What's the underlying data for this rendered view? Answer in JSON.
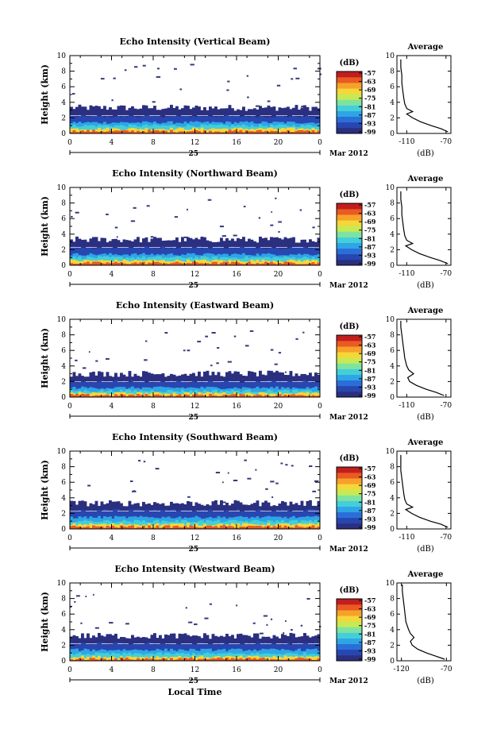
{
  "figure": {
    "common": {
      "ylabel": "Height (km)",
      "y_ticks": [
        "0",
        "2",
        "4",
        "6",
        "8",
        "10"
      ],
      "x_ticks": [
        "0",
        "4",
        "8",
        "12",
        "16",
        "20",
        "0"
      ],
      "day_label": "25",
      "month_label": "Mar 2012",
      "colorbar_unit": "(dB)",
      "colorbar_ticks": [
        "-57",
        "-63",
        "-69",
        "-75",
        "-81",
        "-87",
        "-93",
        "-99"
      ],
      "average_title": "Average",
      "average_unit": "(dB)",
      "bottom_xlabel": "Local Time"
    },
    "colors": {
      "colormap": [
        "#2b2f7f",
        "#2846b0",
        "#2a6fd8",
        "#2fa5e6",
        "#43cfd8",
        "#7fe3a0",
        "#c6ea55",
        "#f5d73a",
        "#f6a12a",
        "#ea5a22",
        "#c21e1e"
      ],
      "background_echo": "#333a7a"
    }
  },
  "chart_data": [
    {
      "type": "heatmap",
      "title": "Echo Intensity (Vertical Beam)",
      "x_range_hours": [
        0,
        24
      ],
      "y_range_km": [
        0,
        10
      ],
      "color_range_db": [
        -99,
        -57
      ],
      "layers": [
        {
          "top_km": 3.3,
          "value_db": -98
        },
        {
          "top_km": 2.2,
          "value_db": -93
        },
        {
          "top_km": 1.4,
          "value_db": -87
        },
        {
          "top_km": 1.0,
          "value_db": -81
        },
        {
          "top_km": 0.6,
          "value_db": -69
        },
        {
          "top_km": 0.3,
          "value_db": -60
        }
      ],
      "profile": {
        "x_ticks": [
          "-110",
          "-70"
        ],
        "xlim": [
          -120,
          -65
        ],
        "height_km": [
          0.2,
          0.6,
          1.0,
          1.5,
          2.0,
          2.5,
          2.8,
          3.2,
          3.8,
          4.5,
          5.5,
          6.5,
          7.5,
          8.5,
          9.5
        ],
        "value_db": [
          -68,
          -75,
          -85,
          -96,
          -104,
          -110,
          -104,
          -110,
          -112,
          -113,
          -114,
          -115,
          -115,
          -116,
          -116
        ]
      }
    },
    {
      "type": "heatmap",
      "title": "Echo Intensity (Northward Beam)",
      "x_range_hours": [
        0,
        24
      ],
      "y_range_km": [
        0,
        10
      ],
      "color_range_db": [
        -99,
        -57
      ],
      "layers": [
        {
          "top_km": 3.3,
          "value_db": -98
        },
        {
          "top_km": 2.3,
          "value_db": -93
        },
        {
          "top_km": 1.4,
          "value_db": -87
        },
        {
          "top_km": 1.0,
          "value_db": -81
        },
        {
          "top_km": 0.6,
          "value_db": -69
        },
        {
          "top_km": 0.3,
          "value_db": -60
        }
      ],
      "profile": {
        "x_ticks": [
          "-110",
          "-70"
        ],
        "xlim": [
          -120,
          -65
        ],
        "height_km": [
          0.2,
          0.6,
          1.0,
          1.5,
          2.0,
          2.5,
          2.8,
          3.2,
          3.8,
          4.5,
          5.5,
          6.5,
          7.5,
          8.5,
          9.5
        ],
        "value_db": [
          -68,
          -76,
          -86,
          -97,
          -105,
          -111,
          -104,
          -110,
          -112,
          -113,
          -114,
          -115,
          -115,
          -116,
          -116
        ]
      }
    },
    {
      "type": "heatmap",
      "title": "Echo Intensity (Eastward Beam)",
      "x_range_hours": [
        0,
        24
      ],
      "y_range_km": [
        0,
        10
      ],
      "color_range_db": [
        -99,
        -57
      ],
      "layers": [
        {
          "top_km": 3.0,
          "value_db": -98
        },
        {
          "top_km": 2.0,
          "value_db": -93
        },
        {
          "top_km": 1.2,
          "value_db": -87
        },
        {
          "top_km": 0.8,
          "value_db": -81
        },
        {
          "top_km": 0.5,
          "value_db": -69
        },
        {
          "top_km": 0.25,
          "value_db": -63
        }
      ],
      "profile": {
        "x_ticks": [
          "-110",
          "-70"
        ],
        "xlim": [
          -120,
          -65
        ],
        "height_km": [
          0.2,
          0.6,
          1.0,
          1.5,
          2.0,
          2.5,
          3.0,
          3.5,
          4.0,
          5.0,
          6.0,
          7.0,
          8.0,
          9.0,
          9.8
        ],
        "value_db": [
          -72,
          -80,
          -90,
          -100,
          -107,
          -109,
          -103,
          -108,
          -110,
          -112,
          -113,
          -114,
          -115,
          -116,
          -116
        ]
      }
    },
    {
      "type": "heatmap",
      "title": "Echo Intensity (Southward Beam)",
      "x_range_hours": [
        0,
        24
      ],
      "y_range_km": [
        0,
        10
      ],
      "color_range_db": [
        -99,
        -57
      ],
      "layers": [
        {
          "top_km": 3.3,
          "value_db": -98
        },
        {
          "top_km": 2.4,
          "value_db": -93
        },
        {
          "top_km": 1.5,
          "value_db": -87
        },
        {
          "top_km": 1.0,
          "value_db": -81
        },
        {
          "top_km": 0.6,
          "value_db": -69
        },
        {
          "top_km": 0.3,
          "value_db": -60
        }
      ],
      "profile": {
        "x_ticks": [
          "-110",
          "-70"
        ],
        "xlim": [
          -120,
          -65
        ],
        "height_km": [
          0.2,
          0.6,
          1.0,
          1.5,
          2.0,
          2.5,
          2.8,
          3.2,
          3.8,
          4.5,
          5.5,
          6.5,
          7.5,
          8.5,
          9.5
        ],
        "value_db": [
          -68,
          -75,
          -86,
          -97,
          -105,
          -111,
          -104,
          -110,
          -112,
          -113,
          -114,
          -115,
          -116,
          -116,
          -116
        ]
      }
    },
    {
      "type": "heatmap",
      "title": "Echo Intensity (Westward Beam)",
      "x_range_hours": [
        0,
        24
      ],
      "y_range_km": [
        0,
        10
      ],
      "color_range_db": [
        -99,
        -57
      ],
      "layers": [
        {
          "top_km": 3.2,
          "value_db": -98
        },
        {
          "top_km": 2.2,
          "value_db": -93
        },
        {
          "top_km": 1.4,
          "value_db": -87
        },
        {
          "top_km": 0.9,
          "value_db": -81
        },
        {
          "top_km": 0.5,
          "value_db": -69
        },
        {
          "top_km": 0.25,
          "value_db": -63
        }
      ],
      "profile": {
        "x_ticks": [
          "-120",
          "-70"
        ],
        "xlim": [
          -125,
          -65
        ],
        "height_km": [
          0.2,
          0.6,
          1.0,
          1.5,
          2.0,
          2.5,
          3.0,
          3.5,
          4.0,
          5.0,
          6.0,
          7.0,
          8.0,
          9.0,
          9.8
        ],
        "value_db": [
          -72,
          -82,
          -92,
          -102,
          -108,
          -110,
          -106,
          -110,
          -112,
          -115,
          -116,
          -117,
          -118,
          -119,
          -119
        ]
      }
    }
  ]
}
